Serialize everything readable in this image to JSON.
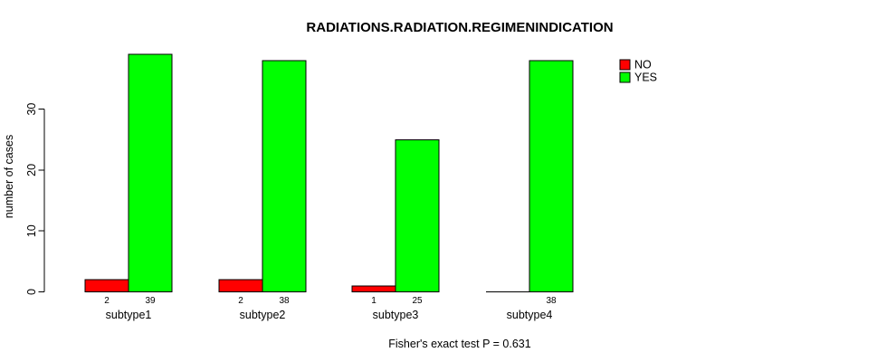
{
  "page": {
    "background_color": "#FFFFFF",
    "text_color": "#000000"
  },
  "header": {
    "title": "RADIATIONS.RADIATION.REGIMENINDICATION"
  },
  "footer": {
    "caption": "Fisher's exact test P = 0.631"
  },
  "legend": {
    "items": [
      {
        "label": "NO",
        "color": "#FF0000"
      },
      {
        "label": "YES",
        "color": "#00FF00"
      }
    ]
  },
  "chart_data": {
    "type": "bar",
    "title": "RADIATIONS.RADIATION.REGIMENINDICATION",
    "xlabel": "",
    "ylabel": "number of cases",
    "categories": [
      "subtype1",
      "subtype2",
      "subtype3",
      "subtype4"
    ],
    "series": [
      {
        "name": "NO",
        "color": "#FF0000",
        "values": [
          2,
          2,
          1,
          0
        ]
      },
      {
        "name": "YES",
        "color": "#00FF00",
        "values": [
          39,
          38,
          25,
          38
        ]
      }
    ],
    "bar_value_labels": [
      [
        "2",
        "39"
      ],
      [
        "2",
        "38"
      ],
      [
        "1",
        "25"
      ],
      [
        "",
        "38"
      ]
    ],
    "yticks": [
      0,
      10,
      20,
      30
    ],
    "ylim": [
      0,
      40
    ],
    "grid": false,
    "bar_border_color": "#000000",
    "legend_position": "top-right",
    "annotation": "Fisher's exact test P = 0.631"
  }
}
